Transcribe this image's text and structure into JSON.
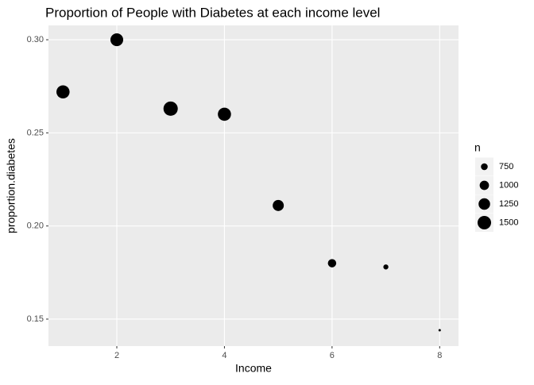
{
  "chart_data": {
    "type": "scatter",
    "title": "Proportion of People with Diabetes at each income level",
    "xlabel": "Income",
    "ylabel": "proportion.diabetes",
    "x": [
      1,
      2,
      3,
      4,
      5,
      6,
      7,
      8
    ],
    "series": [
      {
        "color": "#000000",
        "values": [
          0.272,
          0.3,
          0.263,
          0.26,
          0.211,
          0.18,
          0.178,
          0.144
        ],
        "sizes": [
          1450,
          1400,
          1600,
          1450,
          1200,
          900,
          600,
          400
        ]
      }
    ],
    "xlim": [
      0.73,
      8.35
    ],
    "xticks": [
      2,
      4,
      6,
      8
    ],
    "ylim": [
      0.1355,
      0.3077
    ],
    "yticks": [
      0.15,
      {
        "value": 0.2,
        "label": "0.20"
      },
      0.25,
      {
        "value": 0.3,
        "label": "0.30"
      }
    ],
    "size_title": "n",
    "sizelim": [
      400,
      1600
    ],
    "size_legend": [
      750,
      1000,
      1250,
      1500
    ],
    "grid": true
  }
}
